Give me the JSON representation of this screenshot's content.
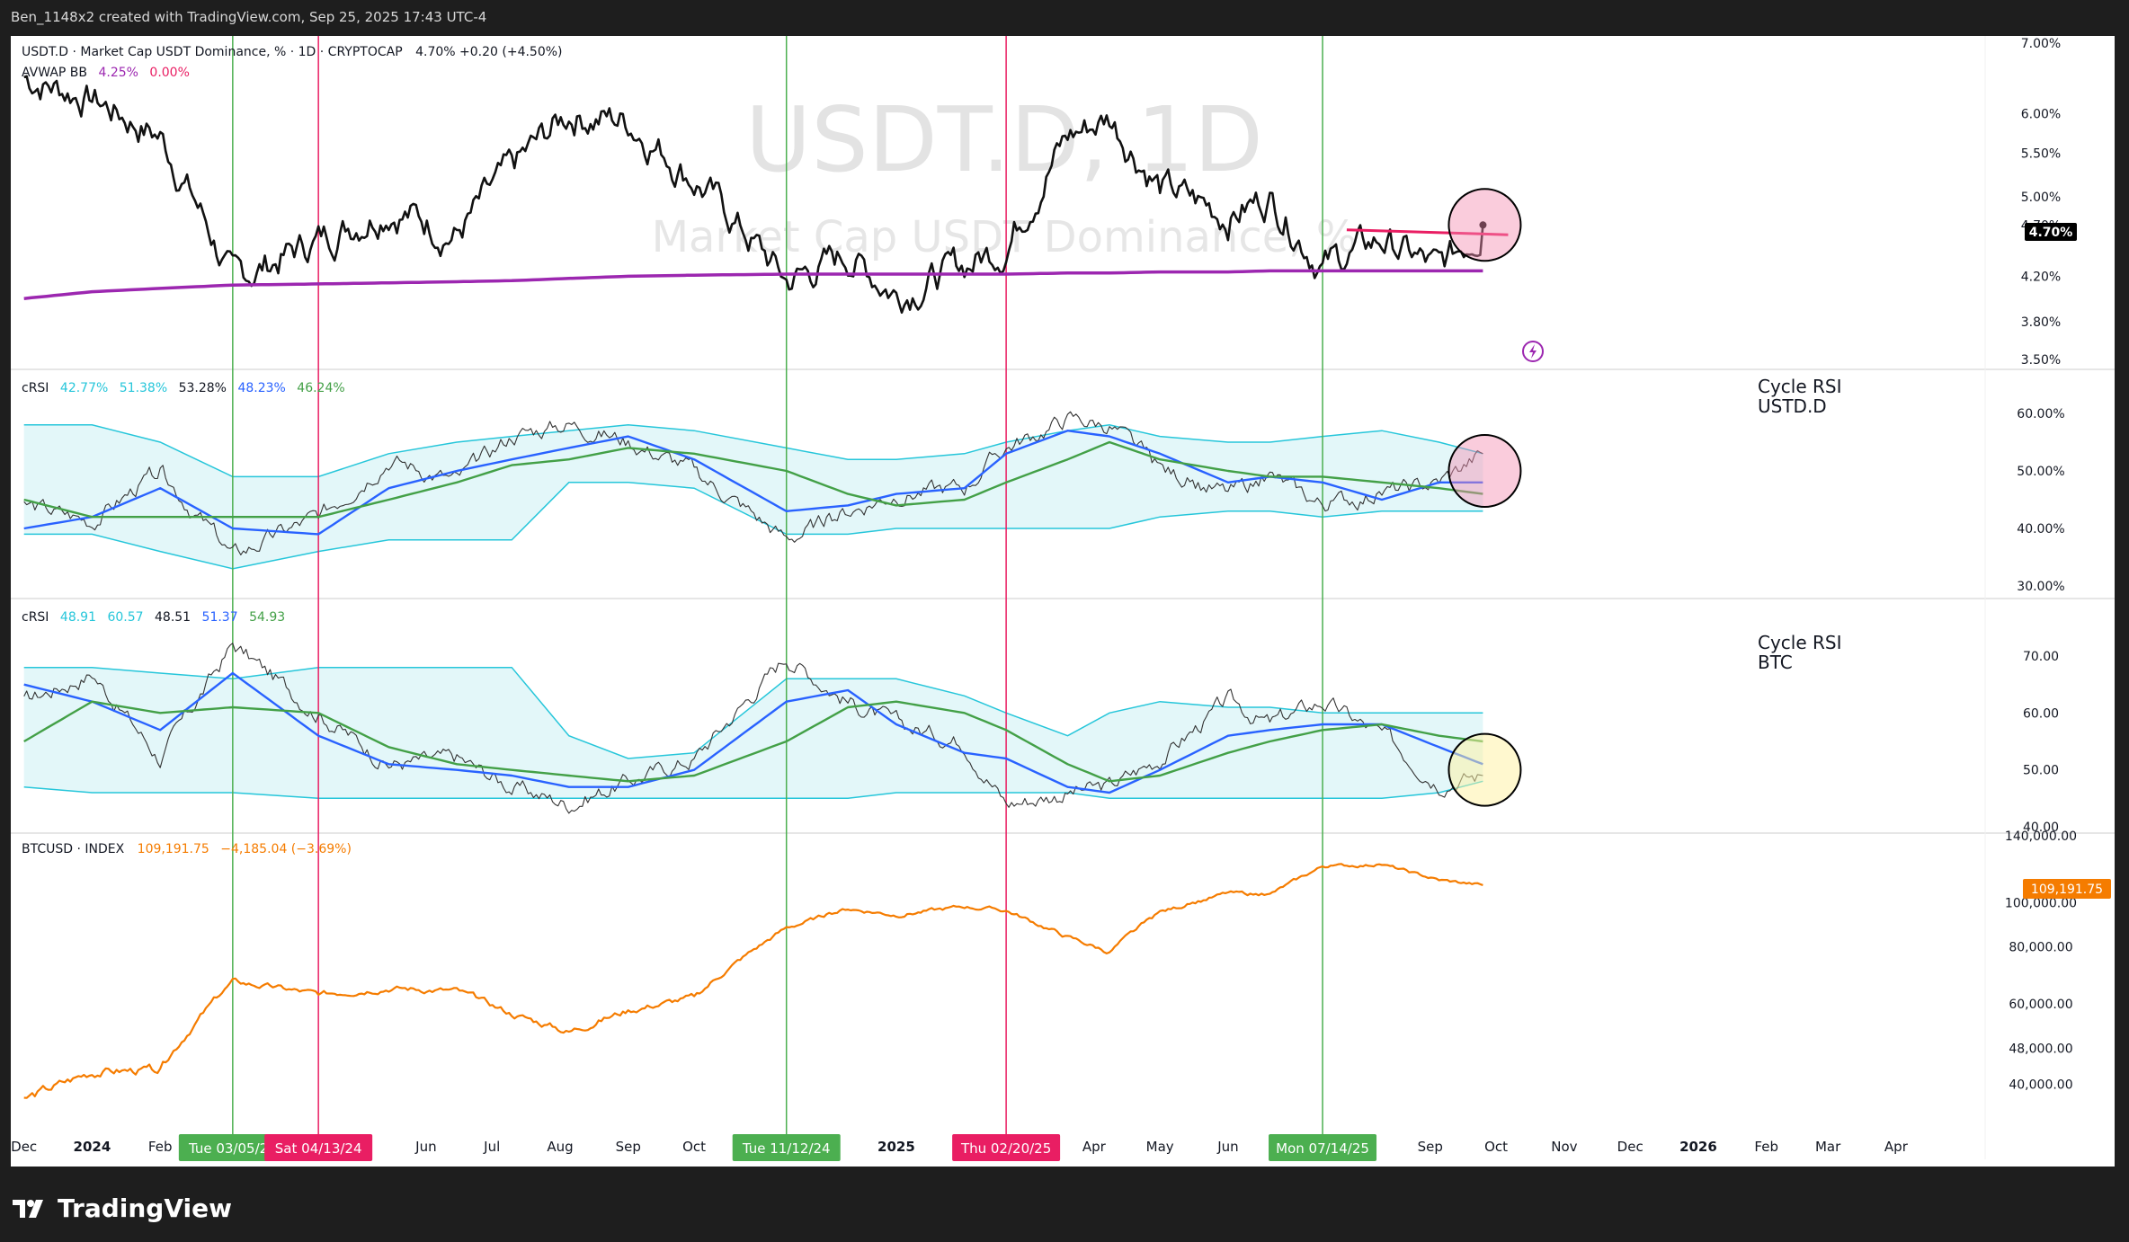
{
  "header": {
    "caption": "Ben_1148x2 created with TradingView.com, Sep 25, 2025 17:43 UTC-4"
  },
  "footer": {
    "brand": "TradingView"
  },
  "watermark": {
    "symbol": "USDT.D, 1D",
    "name": "Market Cap USDT Dominance, %"
  },
  "colors": {
    "price": "#111111",
    "avwap": "#9c27b0",
    "trend": "#e91e63",
    "band": "#26c6da",
    "band_fill": "#e3f7f9",
    "fast": "#2962ff",
    "slow": "#43a047",
    "btc": "#f57c00",
    "green_marker": "#4caf50",
    "red_marker": "#e91e63"
  },
  "panes": {
    "usdt": {
      "title": "USDT.D · Market Cap USDT Dominance, % · 1D · CRYPTOCAP",
      "ohlc": "4.70%  +0.20 (+4.50%)",
      "indicator_name": "AVWAP BB",
      "indicator_v1": "4.25%",
      "indicator_v2": "0.00%",
      "last_label": "4.70%"
    },
    "rsi1": {
      "name": "cRSI",
      "values": [
        "42.77%",
        "51.38%",
        "53.28%",
        "48.23%",
        "46.24%"
      ],
      "note_line1": "Cycle RSI",
      "note_line2": "USTD.D"
    },
    "rsi2": {
      "name": "cRSI",
      "values": [
        "48.91",
        "60.57",
        "48.51",
        "51.37",
        "54.93"
      ],
      "note_line1": "Cycle RSI",
      "note_line2": "BTC"
    },
    "btc": {
      "title": "BTCUSD · INDEX",
      "value": "109,191.75",
      "change": "−4,185.04 (−3.69%)",
      "last_label": "109,191.75"
    }
  },
  "chart_data": [
    {
      "type": "line",
      "title": "USDT.D · Market Cap USDT Dominance, % · 1D · CRYPTOCAP",
      "y_scale": "log",
      "ylim": [
        3.5,
        7.0
      ],
      "y_ticks": [
        "7.00%",
        "6.00%",
        "5.50%",
        "5.00%",
        "4.70%",
        "4.20%",
        "3.80%",
        "3.50%"
      ],
      "y_tick_values": [
        7.0,
        6.0,
        5.5,
        5.0,
        4.7,
        4.2,
        3.8,
        3.5
      ],
      "x": [
        "2023-12-01",
        "2024-01-01",
        "2024-02-01",
        "2024-03-05",
        "2024-04-13",
        "2024-05-15",
        "2024-06-15",
        "2024-07-10",
        "2024-08-05",
        "2024-09-01",
        "2024-10-01",
        "2024-11-12",
        "2024-12-10",
        "2025-01-01",
        "2025-02-01",
        "2025-02-20",
        "2025-03-20",
        "2025-04-08",
        "2025-05-01",
        "2025-06-01",
        "2025-06-20",
        "2025-07-14",
        "2025-08-10",
        "2025-09-05",
        "2025-09-25"
      ],
      "series": [
        {
          "name": "USDT.D",
          "values": [
            6.5,
            6.2,
            5.7,
            4.15,
            4.55,
            4.9,
            4.6,
            5.3,
            6.0,
            5.9,
            5.2,
            4.15,
            4.4,
            4.05,
            4.3,
            4.5,
            5.7,
            5.95,
            5.1,
            4.8,
            5.0,
            4.3,
            4.55,
            4.25,
            4.7
          ]
        },
        {
          "name": "AVWAP BB",
          "values": [
            4.0,
            4.06,
            4.09,
            4.12,
            4.13,
            4.14,
            4.15,
            4.16,
            4.18,
            4.2,
            4.21,
            4.22,
            4.22,
            4.22,
            4.22,
            4.22,
            4.23,
            4.23,
            4.24,
            4.24,
            4.25,
            4.25,
            4.25,
            4.25,
            4.25
          ]
        }
      ],
      "trend_line": {
        "x": [
          "2025-07-25",
          "2025-09-25"
        ],
        "y": [
          4.65,
          4.6
        ]
      },
      "last_value": 4.7
    },
    {
      "type": "line",
      "title": "cRSI",
      "ylim": [
        30,
        60
      ],
      "y_ticks": [
        "60.00%",
        "50.00%",
        "40.00%",
        "30.00%"
      ],
      "y_tick_values": [
        60,
        50,
        40,
        30
      ],
      "x": [
        "2023-12-01",
        "2024-01-01",
        "2024-02-01",
        "2024-03-05",
        "2024-04-13",
        "2024-05-15",
        "2024-06-15",
        "2024-07-10",
        "2024-08-05",
        "2024-09-01",
        "2024-10-01",
        "2024-11-12",
        "2024-12-10",
        "2025-01-01",
        "2025-02-01",
        "2025-02-20",
        "2025-03-20",
        "2025-04-08",
        "2025-05-01",
        "2025-06-01",
        "2025-06-20",
        "2025-07-14",
        "2025-08-10",
        "2025-09-05",
        "2025-09-25"
      ],
      "series": [
        {
          "name": "cRSI",
          "values": [
            44,
            41,
            50,
            35,
            42,
            52,
            48,
            56,
            58,
            55,
            50,
            38,
            43,
            46,
            47,
            54,
            59,
            58,
            50,
            46,
            49,
            44,
            46,
            48,
            53
          ]
        },
        {
          "name": "fast",
          "values": [
            40,
            42,
            47,
            40,
            39,
            47,
            50,
            52,
            54,
            56,
            52,
            43,
            44,
            46,
            47,
            53,
            57,
            56,
            53,
            48,
            49,
            48,
            45,
            48,
            48
          ]
        },
        {
          "name": "slow",
          "values": [
            45,
            42,
            42,
            42,
            42,
            45,
            48,
            51,
            52,
            54,
            53,
            50,
            46,
            44,
            45,
            48,
            52,
            55,
            52,
            50,
            49,
            49,
            48,
            47,
            46
          ]
        },
        {
          "name": "upper band",
          "values": [
            58,
            58,
            55,
            49,
            49,
            53,
            55,
            56,
            57,
            58,
            57,
            54,
            52,
            52,
            53,
            55,
            57,
            58,
            56,
            55,
            55,
            56,
            57,
            55,
            53
          ]
        },
        {
          "name": "lower band",
          "values": [
            39,
            39,
            36,
            33,
            36,
            38,
            38,
            38,
            48,
            48,
            47,
            39,
            39,
            40,
            40,
            40,
            40,
            40,
            42,
            43,
            43,
            42,
            43,
            43,
            43
          ]
        }
      ]
    },
    {
      "type": "line",
      "title": "cRSI",
      "ylim": [
        40,
        70
      ],
      "y_ticks": [
        "70.00",
        "60.00",
        "50.00",
        "40.00"
      ],
      "y_tick_values": [
        70,
        60,
        50,
        40
      ],
      "x": [
        "2023-12-01",
        "2024-01-01",
        "2024-02-01",
        "2024-03-05",
        "2024-04-13",
        "2024-05-15",
        "2024-06-15",
        "2024-07-10",
        "2024-08-05",
        "2024-09-01",
        "2024-10-01",
        "2024-11-12",
        "2024-12-10",
        "2025-01-01",
        "2025-02-01",
        "2025-02-20",
        "2025-03-20",
        "2025-04-08",
        "2025-05-01",
        "2025-06-01",
        "2025-06-20",
        "2025-07-14",
        "2025-08-10",
        "2025-09-05",
        "2025-09-25"
      ],
      "series": [
        {
          "name": "cRSI",
          "values": [
            62,
            67,
            52,
            72,
            60,
            51,
            52,
            47,
            44,
            48,
            52,
            70,
            62,
            58,
            55,
            44,
            46,
            47,
            52,
            62,
            58,
            62,
            56,
            48,
            49
          ]
        },
        {
          "name": "fast",
          "values": [
            65,
            62,
            57,
            67,
            56,
            51,
            50,
            49,
            47,
            47,
            50,
            62,
            64,
            58,
            53,
            52,
            47,
            46,
            50,
            56,
            57,
            58,
            58,
            54,
            51
          ]
        },
        {
          "name": "slow",
          "values": [
            55,
            62,
            60,
            61,
            60,
            54,
            51,
            50,
            49,
            48,
            49,
            55,
            61,
            62,
            60,
            57,
            51,
            48,
            49,
            53,
            55,
            57,
            58,
            56,
            55
          ]
        },
        {
          "name": "upper band",
          "values": [
            68,
            68,
            67,
            66,
            68,
            68,
            68,
            68,
            56,
            52,
            53,
            66,
            66,
            66,
            63,
            60,
            56,
            60,
            62,
            61,
            61,
            60,
            60,
            60,
            60
          ]
        },
        {
          "name": "lower band",
          "values": [
            47,
            46,
            46,
            46,
            45,
            45,
            45,
            45,
            45,
            45,
            45,
            45,
            45,
            46,
            46,
            46,
            46,
            45,
            45,
            45,
            45,
            45,
            45,
            46,
            48
          ]
        }
      ]
    },
    {
      "type": "line",
      "title": "BTCUSD · INDEX",
      "y_scale": "log",
      "ylim": [
        36000,
        140000
      ],
      "y_ticks": [
        "140,000.00",
        "100,000.00",
        "80,000.00",
        "60,000.00",
        "48,000.00",
        "40,000.00"
      ],
      "y_tick_values": [
        140000,
        100000,
        80000,
        60000,
        48000,
        40000
      ],
      "x": [
        "2023-12-01",
        "2024-01-01",
        "2024-02-01",
        "2024-03-05",
        "2024-04-13",
        "2024-05-15",
        "2024-06-15",
        "2024-07-10",
        "2024-08-05",
        "2024-09-01",
        "2024-10-01",
        "2024-11-12",
        "2024-12-10",
        "2025-01-01",
        "2025-02-01",
        "2025-02-20",
        "2025-03-20",
        "2025-04-08",
        "2025-05-01",
        "2025-06-01",
        "2025-06-20",
        "2025-07-14",
        "2025-08-10",
        "2025-09-05",
        "2025-09-25"
      ],
      "series": [
        {
          "name": "BTCUSD",
          "values": [
            37000,
            42500,
            43000,
            67000,
            63000,
            65000,
            64000,
            57000,
            52000,
            58000,
            62000,
            88000,
            97000,
            94000,
            98000,
            96000,
            84000,
            78000,
            95000,
            105000,
            104000,
            120000,
            121000,
            112000,
            109191.75
          ]
        }
      ],
      "last_value": 109191.75
    }
  ],
  "x_axis": {
    "labels": [
      {
        "text": "Dec",
        "date": "2023-12-01",
        "bold": false
      },
      {
        "text": "2024",
        "date": "2024-01-01",
        "bold": true
      },
      {
        "text": "Feb",
        "date": "2024-02-01",
        "bold": false
      },
      {
        "text": "Jun",
        "date": "2024-06-01",
        "bold": false
      },
      {
        "text": "Jul",
        "date": "2024-07-01",
        "bold": false
      },
      {
        "text": "Aug",
        "date": "2024-08-01",
        "bold": false
      },
      {
        "text": "Sep",
        "date": "2024-09-01",
        "bold": false
      },
      {
        "text": "Oct",
        "date": "2024-10-01",
        "bold": false
      },
      {
        "text": "2025",
        "date": "2025-01-01",
        "bold": true
      },
      {
        "text": "Apr",
        "date": "2025-04-01",
        "bold": false
      },
      {
        "text": "May",
        "date": "2025-05-01",
        "bold": false
      },
      {
        "text": "Jun",
        "date": "2025-06-01",
        "bold": false
      },
      {
        "text": "Sep",
        "date": "2025-09-01",
        "bold": false
      },
      {
        "text": "Oct",
        "date": "2025-10-01",
        "bold": false
      },
      {
        "text": "Nov",
        "date": "2025-11-01",
        "bold": false
      },
      {
        "text": "Dec",
        "date": "2025-12-01",
        "bold": false
      },
      {
        "text": "2026",
        "date": "2026-01-01",
        "bold": true
      },
      {
        "text": "Feb",
        "date": "2026-02-01",
        "bold": false
      },
      {
        "text": "Mar",
        "date": "2026-03-01",
        "bold": false
      },
      {
        "text": "Apr",
        "date": "2026-04-01",
        "bold": false
      }
    ],
    "markers": [
      {
        "label": "Tue 03/05/24",
        "date": "2024-03-05",
        "color": "green"
      },
      {
        "label": "Sat 04/13/24",
        "date": "2024-04-13",
        "color": "red"
      },
      {
        "label": "Tue 11/12/24",
        "date": "2024-11-12",
        "color": "green"
      },
      {
        "label": "Thu 02/20/25",
        "date": "2025-02-20",
        "color": "red"
      },
      {
        "label": "Mon 07/14/25",
        "date": "2025-07-14",
        "color": "green"
      }
    ]
  },
  "highlights": [
    {
      "pane": "usdt",
      "date": "2025-09-25",
      "value": 4.7,
      "color": "pink"
    },
    {
      "pane": "rsi1",
      "date": "2025-09-25",
      "value": 50,
      "color": "pink"
    },
    {
      "pane": "rsi2",
      "date": "2025-09-25",
      "value": 50,
      "color": "yellow"
    }
  ]
}
